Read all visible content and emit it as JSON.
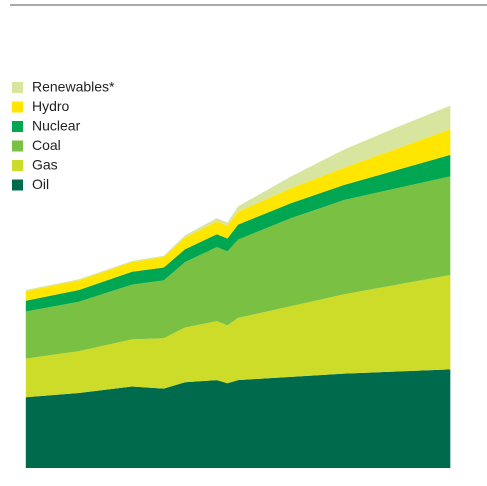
{
  "chart_data": {
    "type": "stacked_area",
    "x": [
      1990,
      1995,
      2000,
      2003,
      2005,
      2008,
      2009,
      2010,
      2015,
      2020,
      2025,
      2030
    ],
    "series": [
      {
        "name": "Oil",
        "color": "#006a4d",
        "values": [
          3.3,
          3.5,
          3.8,
          3.7,
          4.0,
          4.1,
          3.95,
          4.1,
          4.25,
          4.4,
          4.5,
          4.6
        ]
      },
      {
        "name": "Gas",
        "color": "#cddc29",
        "values": [
          1.8,
          1.95,
          2.2,
          2.35,
          2.55,
          2.75,
          2.7,
          2.9,
          3.3,
          3.7,
          4.05,
          4.4
        ]
      },
      {
        "name": "Coal",
        "color": "#7ac143",
        "values": [
          2.2,
          2.3,
          2.55,
          2.7,
          3.05,
          3.45,
          3.45,
          3.65,
          4.1,
          4.4,
          4.5,
          4.6
        ]
      },
      {
        "name": "Nuclear",
        "color": "#00a651",
        "values": [
          0.5,
          0.55,
          0.6,
          0.6,
          0.6,
          0.6,
          0.6,
          0.7,
          0.7,
          0.7,
          0.85,
          1.0
        ]
      },
      {
        "name": "Hydro",
        "color": "#ffe600",
        "values": [
          0.45,
          0.45,
          0.45,
          0.5,
          0.55,
          0.6,
          0.6,
          0.6,
          0.7,
          0.8,
          1.0,
          1.2
        ]
      },
      {
        "name": "Renewables*",
        "color": "#d8e59e",
        "values": [
          0.05,
          0.05,
          0.05,
          0.05,
          0.1,
          0.15,
          0.15,
          0.25,
          0.55,
          0.85,
          1.0,
          1.1
        ]
      }
    ],
    "xlim": [
      1988.7,
      2031.1
    ],
    "xticks": [
      1990,
      2000,
      2010,
      2020,
      2030
    ],
    "ylim": [
      0,
      18
    ],
    "yticks": [
      2,
      4,
      6,
      8,
      10,
      12,
      14,
      16,
      18
    ]
  }
}
